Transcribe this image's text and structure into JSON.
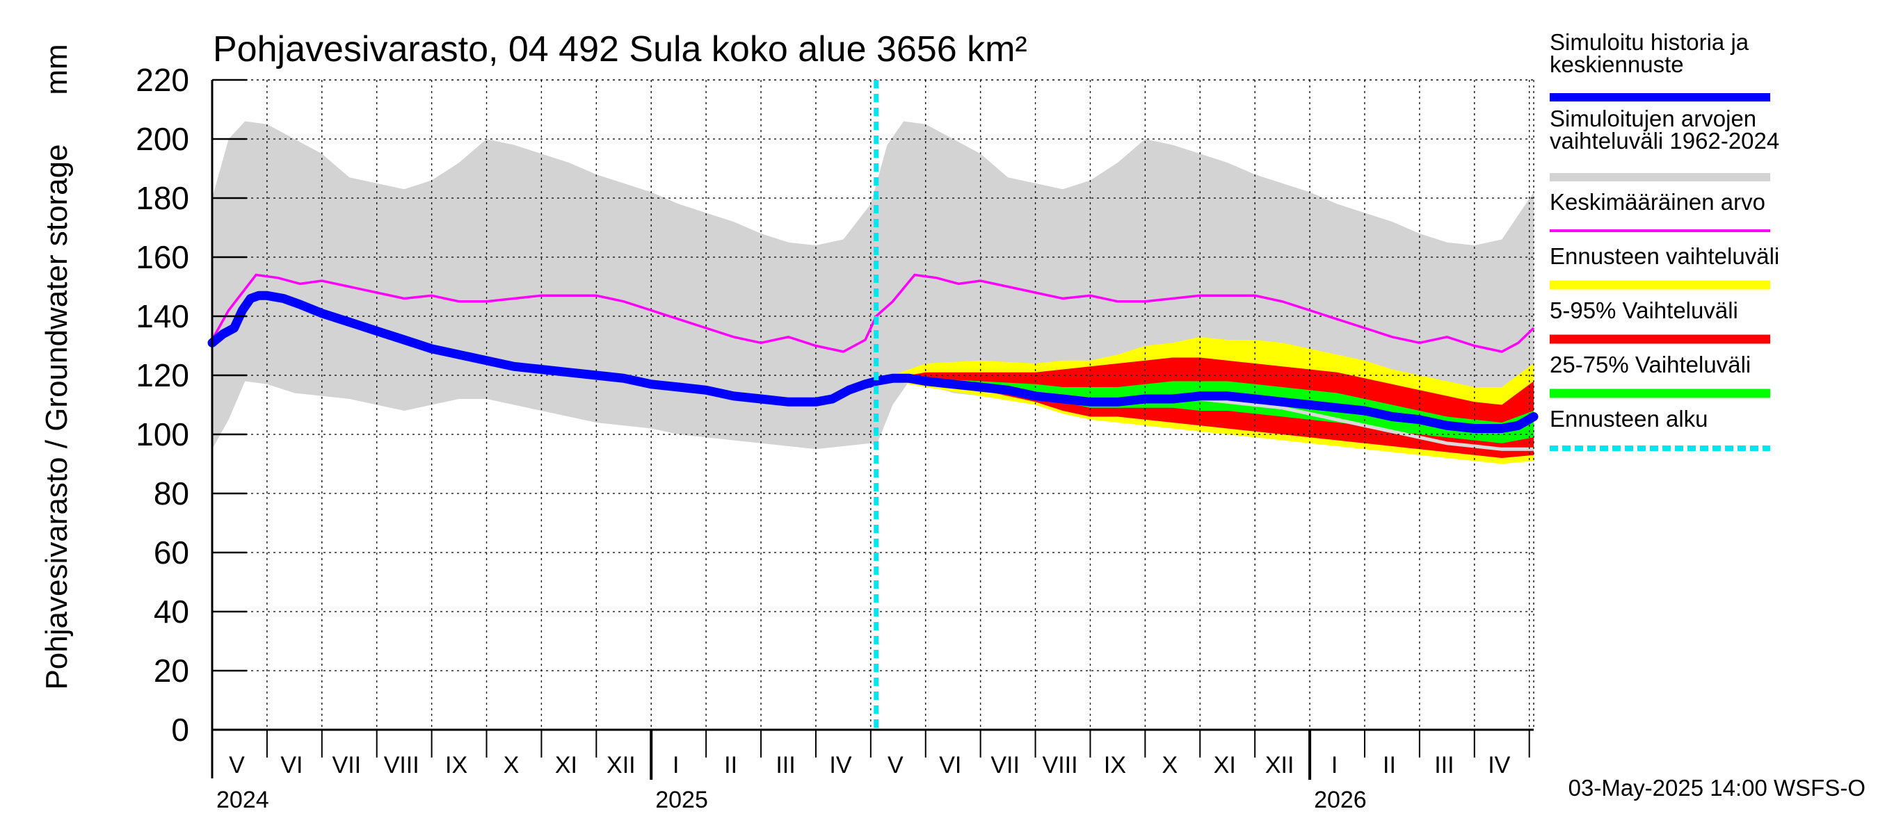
{
  "chart_data": {
    "type": "area",
    "title": "Pohjavesivarasto, 04 492 Sula koko alue 3656 km²",
    "ylabel": "Pohjavesivarasto / Groundwater storage",
    "yunit": "mm",
    "ylim": [
      0,
      220
    ],
    "yticks": [
      0,
      20,
      40,
      60,
      80,
      100,
      120,
      140,
      160,
      180,
      200,
      220
    ],
    "xlim": [
      0,
      24.08
    ],
    "month_boundaries": [
      0,
      1,
      2,
      3,
      4,
      5,
      6,
      7,
      8,
      9,
      10,
      11,
      12,
      13,
      14,
      15,
      16,
      17,
      18,
      19,
      20,
      21,
      22,
      23,
      24
    ],
    "year_boundaries": [
      8,
      20
    ],
    "month_labels": [
      "V",
      "VI",
      "VII",
      "VIII",
      "IX",
      "X",
      "XI",
      "XII",
      "I",
      "II",
      "III",
      "IV",
      "V",
      "VI",
      "VII",
      "VIII",
      "IX",
      "X",
      "XI",
      "XII",
      "I",
      "II",
      "III",
      "IV"
    ],
    "year_labels": [
      {
        "text": "2024",
        "month": 0
      },
      {
        "text": "2025",
        "month": 8
      },
      {
        "text": "2026",
        "month": 20
      }
    ],
    "forecast_start_month": 12.1,
    "footer": "03-May-2025 14:00 WSFS-O",
    "legend": [
      {
        "id": "sim",
        "label": [
          "Simuloitu historia ja",
          "keskiennuste"
        ],
        "color": "#0000ff"
      },
      {
        "id": "range",
        "label": [
          "Simuloitujen arvojen",
          "vaihteluväli 1962-2024"
        ],
        "color": "#d3d3d3"
      },
      {
        "id": "mean",
        "label": [
          "Keskimääräinen arvo"
        ],
        "color": "#ff00ff"
      },
      {
        "id": "fc_range",
        "label": [
          "Ennusteen vaihteluväli"
        ],
        "color": "#ffff00"
      },
      {
        "id": "p5_95",
        "label": [
          "5-95% Vaihteluväli"
        ],
        "color": "#ff0000"
      },
      {
        "id": "p25_75",
        "label": [
          "25-75% Vaihteluväli"
        ],
        "color": "#00ff00"
      },
      {
        "id": "fc_start",
        "label": [
          "Ennusteen alku"
        ],
        "color": "#00e5ee"
      }
    ],
    "series": {
      "hist_upper": {
        "x": [
          0,
          0.3,
          0.6,
          1.0,
          1.5,
          2.0,
          2.5,
          3.0,
          3.5,
          4.0,
          4.5,
          5.0,
          5.5,
          6.0,
          6.5,
          7.0,
          7.5,
          8.0,
          8.5,
          9.0,
          9.5,
          10.0,
          10.5,
          11.0,
          11.5,
          12.0,
          12.3,
          12.6,
          13.0,
          13.5,
          14.0,
          14.5,
          15.0,
          15.5,
          16.0,
          16.5,
          17.0,
          17.5,
          18.0,
          18.5,
          19.0,
          19.5,
          20.0,
          20.5,
          21.0,
          21.5,
          22.0,
          22.5,
          23.0,
          23.5,
          24.08
        ],
        "y": [
          180,
          200,
          206,
          205,
          200,
          195,
          187,
          185,
          183,
          186,
          192,
          200,
          198,
          195,
          192,
          188,
          185,
          182,
          178,
          175,
          172,
          168,
          165,
          164,
          166,
          178,
          198,
          206,
          205,
          200,
          195,
          187,
          185,
          183,
          186,
          192,
          200,
          198,
          195,
          192,
          188,
          185,
          182,
          178,
          175,
          172,
          168,
          165,
          164,
          166,
          182
        ]
      },
      "hist_lower": {
        "x": [
          0,
          0.3,
          0.6,
          1.0,
          1.5,
          2.0,
          2.5,
          3.0,
          3.5,
          4.0,
          4.5,
          5.0,
          5.5,
          6.0,
          6.5,
          7.0,
          7.5,
          8.0,
          8.5,
          9.0,
          9.5,
          10.0,
          10.5,
          11.0,
          11.5,
          12.0,
          12.1,
          12.4,
          12.7,
          13.0,
          13.5,
          14.0,
          14.5,
          15.0,
          15.5,
          16.0,
          16.5,
          17.0,
          17.5,
          18.0,
          18.5,
          19.0,
          19.5,
          20.0,
          20.5,
          21.0,
          21.5,
          22.0,
          22.5,
          23.0,
          23.5,
          24.08
        ],
        "y": [
          95,
          105,
          118,
          117,
          114,
          113,
          112,
          110,
          108,
          110,
          112,
          112,
          110,
          108,
          106,
          104,
          103,
          102,
          100,
          99,
          98,
          97,
          96,
          95,
          96,
          97,
          96,
          110,
          118,
          117,
          114,
          113,
          112,
          110,
          108,
          110,
          112,
          112,
          110,
          108,
          106,
          104,
          103,
          102,
          100,
          99,
          98,
          97,
          96,
          95,
          96,
          100
        ]
      },
      "mean": {
        "x": [
          0,
          0.3,
          0.8,
          1.2,
          1.6,
          2.0,
          2.5,
          3.0,
          3.5,
          4.0,
          4.5,
          5.0,
          5.5,
          6.0,
          6.5,
          7.0,
          7.5,
          8.0,
          8.5,
          9.0,
          9.5,
          10.0,
          10.5,
          11.0,
          11.5,
          11.9,
          12.1,
          12.4,
          12.8,
          13.2,
          13.6,
          14.0,
          14.5,
          15.0,
          15.5,
          16.0,
          16.5,
          17.0,
          17.5,
          18.0,
          18.5,
          19.0,
          19.5,
          20.0,
          20.5,
          21.0,
          21.5,
          22.0,
          22.5,
          23.0,
          23.5,
          23.8,
          24.08
        ],
        "y": [
          132,
          142,
          154,
          153,
          151,
          152,
          150,
          148,
          146,
          147,
          145,
          145,
          146,
          147,
          147,
          147,
          145,
          142,
          139,
          136,
          133,
          131,
          133,
          130,
          128,
          132,
          140,
          145,
          154,
          153,
          151,
          152,
          150,
          148,
          146,
          147,
          145,
          145,
          146,
          147,
          147,
          147,
          145,
          142,
          139,
          136,
          133,
          131,
          133,
          130,
          128,
          131,
          136
        ]
      },
      "sim": {
        "x": [
          0,
          0.2,
          0.4,
          0.55,
          0.7,
          0.85,
          1.0,
          1.3,
          1.6,
          2.0,
          2.5,
          3.0,
          3.5,
          4.0,
          4.5,
          5.0,
          5.5,
          6.0,
          6.5,
          7.0,
          7.5,
          8.0,
          8.5,
          9.0,
          9.5,
          10.0,
          10.5,
          11.0,
          11.3,
          11.6,
          11.9,
          12.1,
          12.4,
          12.7,
          13.0,
          13.5,
          14.0,
          14.5,
          15.0,
          15.5,
          16.0,
          16.5,
          17.0,
          17.5,
          18.0,
          18.5,
          19.0,
          19.5,
          20.0,
          20.5,
          21.0,
          21.5,
          22.0,
          22.5,
          23.0,
          23.5,
          23.8,
          24.08
        ],
        "y": [
          131,
          134,
          136,
          142,
          146,
          147,
          147,
          146,
          144,
          141,
          138,
          135,
          132,
          129,
          127,
          125,
          123,
          122,
          121,
          120,
          119,
          117,
          116,
          115,
          113,
          112,
          111,
          111,
          112,
          115,
          117,
          118,
          119,
          119,
          118,
          117,
          116,
          115,
          113,
          112,
          111,
          111,
          112,
          112,
          113,
          113,
          112,
          111,
          110,
          109,
          108,
          106,
          105,
          103,
          102,
          102,
          103,
          106
        ]
      },
      "fc_yellow_upper": {
        "x": [
          12.4,
          13.0,
          14.0,
          15.0,
          15.5,
          16.0,
          16.5,
          17.0,
          17.5,
          18.0,
          18.5,
          19.0,
          19.5,
          20.0,
          20.5,
          21.0,
          21.5,
          22.0,
          22.5,
          23.0,
          23.5,
          24.08
        ],
        "y": [
          120,
          124,
          125,
          124,
          125,
          125,
          127,
          130,
          131,
          133,
          132,
          132,
          131,
          129,
          127,
          125,
          122,
          120,
          118,
          116,
          116,
          124
        ]
      },
      "fc_yellow_lower": {
        "x": [
          12.4,
          13.0,
          14.0,
          15.0,
          15.5,
          16.0,
          16.5,
          17.0,
          17.5,
          18.0,
          18.5,
          19.0,
          19.5,
          20.0,
          20.5,
          21.0,
          21.5,
          22.0,
          22.5,
          23.0,
          23.5,
          24.08
        ],
        "y": [
          118,
          116,
          113,
          110,
          107,
          105,
          104,
          103,
          102,
          101,
          100,
          99,
          98,
          97,
          96,
          95,
          94,
          93,
          92,
          91,
          90,
          91
        ]
      },
      "fc_red_upper": {
        "x": [
          12.4,
          13.0,
          14.0,
          15.0,
          15.5,
          16.0,
          16.5,
          17.0,
          17.5,
          18.0,
          18.5,
          19.0,
          19.5,
          20.0,
          20.5,
          21.0,
          21.5,
          22.0,
          22.5,
          23.0,
          23.5,
          24.08
        ],
        "y": [
          119,
          121,
          121,
          121,
          122,
          123,
          124,
          125,
          126,
          126,
          125,
          124,
          123,
          122,
          121,
          119,
          117,
          115,
          113,
          111,
          110,
          118
        ]
      },
      "fc_red_lower": {
        "x": [
          12.4,
          13.0,
          14.0,
          15.0,
          15.5,
          16.0,
          16.5,
          17.0,
          17.5,
          18.0,
          18.5,
          19.0,
          19.5,
          20.0,
          20.5,
          21.0,
          21.5,
          22.0,
          22.5,
          23.0,
          23.5,
          24.08
        ],
        "y": [
          118,
          117,
          115,
          111,
          108,
          106,
          106,
          105,
          104,
          103,
          102,
          101,
          100,
          99,
          98,
          97,
          96,
          95,
          94,
          93,
          92,
          93
        ]
      },
      "fc_green_upper": {
        "x": [
          12.4,
          13.0,
          14.0,
          15.0,
          15.5,
          16.0,
          16.5,
          17.0,
          17.5,
          18.0,
          18.5,
          19.0,
          19.5,
          20.0,
          20.5,
          21.0,
          21.5,
          22.0,
          22.5,
          23.0,
          23.5,
          24.08
        ],
        "y": [
          119,
          119,
          118,
          117,
          116,
          116,
          116,
          117,
          118,
          118,
          118,
          117,
          116,
          115,
          114,
          112,
          110,
          108,
          106,
          105,
          104,
          108
        ]
      },
      "fc_green_lower": {
        "x": [
          12.4,
          13.0,
          14.0,
          15.0,
          15.5,
          16.0,
          16.5,
          17.0,
          17.5,
          18.0,
          18.5,
          19.0,
          19.5,
          20.0,
          20.5,
          21.0,
          21.5,
          22.0,
          22.5,
          23.0,
          23.5,
          24.08
        ],
        "y": [
          118,
          118,
          116,
          113,
          111,
          109,
          109,
          109,
          109,
          108,
          108,
          107,
          106,
          105,
          104,
          103,
          101,
          100,
          99,
          98,
          97,
          99
        ]
      },
      "fc_median": {
        "x": [
          12.4,
          13.0,
          14.0,
          15.0,
          15.5,
          16.0,
          16.5,
          17.0,
          17.5,
          18.0,
          18.5,
          19.0,
          19.5,
          20.0,
          20.5,
          21.0,
          21.5,
          22.0,
          22.5,
          23.0,
          23.5,
          24.08
        ],
        "y": [
          118.5,
          118,
          116,
          114,
          113,
          112,
          112,
          112,
          112,
          112,
          111,
          110,
          109,
          107,
          105,
          103,
          101,
          99,
          97,
          96,
          95,
          95
        ]
      }
    }
  }
}
